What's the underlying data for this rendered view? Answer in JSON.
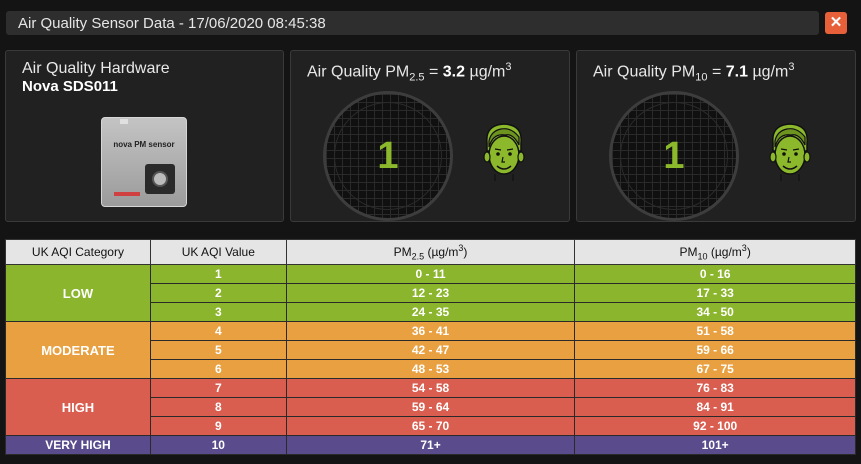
{
  "window": {
    "title": "Air Quality Sensor Data - 17/06/2020 08:45:38",
    "close_label": "✕"
  },
  "hardware": {
    "label": "Air Quality Hardware",
    "model": "Nova SDS011",
    "device_text": "nova PM sensor"
  },
  "pm25": {
    "prefix": "Air Quality PM",
    "subscript": "2.5",
    "value": "3.2",
    "unit": "µg/m",
    "unit_sup": "3",
    "index": "1",
    "face_icon": "happy-face-icon"
  },
  "pm10": {
    "prefix": "Air Quality PM",
    "subscript": "10",
    "value": "7.1",
    "unit": "µg/m",
    "unit_sup": "3",
    "index": "1",
    "face_icon": "happy-face-icon"
  },
  "colors": {
    "low": "#8ab52c",
    "moderate": "#e8a040",
    "high": "#d95e50",
    "very_high": "#5a4b8c",
    "index_text": "#8cb82c"
  },
  "table": {
    "headers": {
      "category": "UK AQI Category",
      "value": "UK AQI Value",
      "pm25_prefix": "PM",
      "pm25_sub": "2.5",
      "pm25_unit": "(µg/m",
      "pm25_sup": "3",
      "pm25_close": ")",
      "pm10_prefix": "PM",
      "pm10_sub": "10",
      "pm10_unit": "(µg/m",
      "pm10_sup": "3",
      "pm10_close": ")"
    },
    "categories": [
      "LOW",
      "MODERATE",
      "HIGH",
      "VERY HIGH"
    ],
    "rows": [
      {
        "value": "1",
        "pm25": "0 - 11",
        "pm10": "0 - 16"
      },
      {
        "value": "2",
        "pm25": "12 - 23",
        "pm10": "17 - 33"
      },
      {
        "value": "3",
        "pm25": "24 - 35",
        "pm10": "34 - 50"
      },
      {
        "value": "4",
        "pm25": "36 - 41",
        "pm10": "51 - 58"
      },
      {
        "value": "5",
        "pm25": "42 - 47",
        "pm10": "59 - 66"
      },
      {
        "value": "6",
        "pm25": "48 - 53",
        "pm10": "67 - 75"
      },
      {
        "value": "7",
        "pm25": "54 - 58",
        "pm10": "76 - 83"
      },
      {
        "value": "8",
        "pm25": "59 - 64",
        "pm10": "84 - 91"
      },
      {
        "value": "9",
        "pm25": "65 - 70",
        "pm10": "92 - 100"
      },
      {
        "value": "10",
        "pm25": "71+",
        "pm10": "101+"
      }
    ]
  }
}
